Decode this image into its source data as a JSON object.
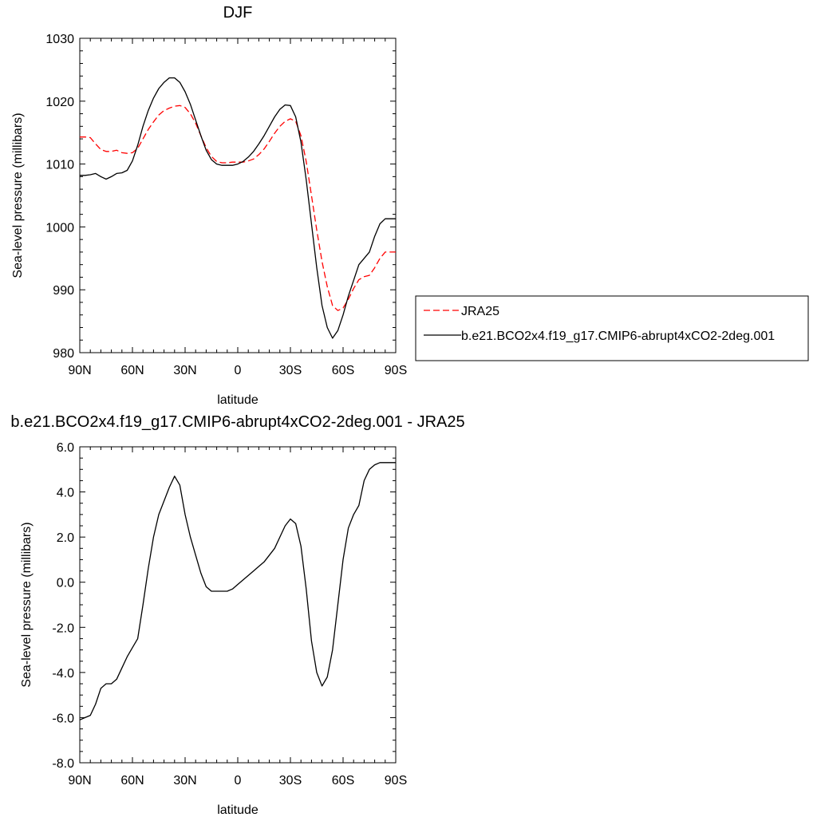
{
  "chart_data": [
    {
      "type": "line",
      "title": "DJF",
      "xlabel": "latitude",
      "ylabel": "Sea-level pressure (millibars)",
      "xlim": [
        90,
        -90
      ],
      "ylim": [
        980,
        1030
      ],
      "xticks": [
        {
          "value": 90,
          "label": "90N"
        },
        {
          "value": 60,
          "label": "60N"
        },
        {
          "value": 30,
          "label": "30N"
        },
        {
          "value": 0,
          "label": "0"
        },
        {
          "value": -30,
          "label": "30S"
        },
        {
          "value": -60,
          "label": "60S"
        },
        {
          "value": -90,
          "label": "90S"
        }
      ],
      "yticks": [
        {
          "value": 980,
          "label": "980"
        },
        {
          "value": 990,
          "label": "990"
        },
        {
          "value": 1000,
          "label": "1000"
        },
        {
          "value": 1010,
          "label": "1010"
        },
        {
          "value": 1020,
          "label": "1020"
        },
        {
          "value": 1030,
          "label": "1030"
        }
      ],
      "grid": false,
      "legend": "right",
      "series": [
        {
          "name": "JRA25",
          "color": "#ff0000",
          "dash": "dashed",
          "x": [
            90,
            87,
            84,
            81,
            78,
            75,
            72,
            69,
            66,
            63,
            60,
            57,
            54,
            51,
            48,
            45,
            42,
            39,
            36,
            33,
            30,
            27,
            24,
            21,
            18,
            15,
            12,
            9,
            6,
            3,
            0,
            -3,
            -6,
            -9,
            -12,
            -15,
            -18,
            -21,
            -24,
            -27,
            -30,
            -33,
            -36,
            -39,
            -42,
            -45,
            -48,
            -51,
            -54,
            -57,
            -60,
            -63,
            -66,
            -69,
            -72,
            -75,
            -78,
            -81,
            -84,
            -87,
            -90
          ],
          "y": [
            1014.3,
            1014.3,
            1014.2,
            1013.2,
            1012.3,
            1012.0,
            1012.0,
            1012.2,
            1011.8,
            1011.7,
            1011.8,
            1012.5,
            1014.0,
            1015.5,
            1016.7,
            1017.8,
            1018.5,
            1018.9,
            1019.2,
            1019.3,
            1019.0,
            1018.0,
            1016.5,
            1014.5,
            1012.6,
            1011.2,
            1010.4,
            1010.2,
            1010.2,
            1010.3,
            1010.3,
            1010.3,
            1010.5,
            1010.8,
            1011.5,
            1012.4,
            1013.6,
            1014.9,
            1016.0,
            1016.8,
            1017.2,
            1016.8,
            1014.5,
            1010.4,
            1005.0,
            999.5,
            994.5,
            990.5,
            987.5,
            986.7,
            987.1,
            988.5,
            990.2,
            991.6,
            992.1,
            992.3,
            993.5,
            995.0,
            996.0,
            996.0,
            996.0
          ]
        },
        {
          "name": "b.e21.BCO2x4.f19_g17.CMIP6-abrupt4xCO2-2deg.001",
          "color": "#000000",
          "dash": "solid",
          "x": [
            90,
            87,
            84,
            81,
            78,
            75,
            72,
            69,
            66,
            63,
            60,
            57,
            54,
            51,
            48,
            45,
            42,
            39,
            36,
            33,
            30,
            27,
            24,
            21,
            18,
            15,
            12,
            9,
            6,
            3,
            0,
            -3,
            -6,
            -9,
            -12,
            -15,
            -18,
            -21,
            -24,
            -27,
            -30,
            -33,
            -36,
            -39,
            -42,
            -45,
            -48,
            -51,
            -54,
            -57,
            -60,
            -63,
            -66,
            -69,
            -72,
            -75,
            -78,
            -81,
            -84,
            -87,
            -90
          ],
          "y": [
            1008.2,
            1008.2,
            1008.3,
            1008.5,
            1008.0,
            1007.6,
            1008.0,
            1008.5,
            1008.6,
            1009.0,
            1010.5,
            1013.0,
            1016.0,
            1018.5,
            1020.5,
            1022.0,
            1023.0,
            1023.7,
            1023.7,
            1023.0,
            1021.5,
            1019.5,
            1017.0,
            1014.5,
            1012.2,
            1010.7,
            1010.0,
            1009.8,
            1009.8,
            1009.8,
            1010.0,
            1010.4,
            1011.1,
            1012.0,
            1013.2,
            1014.5,
            1016.0,
            1017.5,
            1018.7,
            1019.4,
            1019.3,
            1017.5,
            1013.5,
            1007.5,
            1000.5,
            993.5,
            987.5,
            984.0,
            982.3,
            983.5,
            986.0,
            989.0,
            991.5,
            994.0,
            995.0,
            996.0,
            998.5,
            1000.5,
            1001.3,
            1001.3,
            1001.3
          ]
        }
      ]
    },
    {
      "type": "line",
      "title": "b.e21.BCO2x4.f19_g17.CMIP6-abrupt4xCO2-2deg.001 - JRA25",
      "xlabel": "latitude",
      "ylabel": "Sea-level pressure (millibars)",
      "xlim": [
        90,
        -90
      ],
      "ylim": [
        -8,
        6
      ],
      "xticks": [
        {
          "value": 90,
          "label": "90N"
        },
        {
          "value": 60,
          "label": "60N"
        },
        {
          "value": 30,
          "label": "30N"
        },
        {
          "value": 0,
          "label": "0"
        },
        {
          "value": -30,
          "label": "30S"
        },
        {
          "value": -60,
          "label": "60S"
        },
        {
          "value": -90,
          "label": "90S"
        }
      ],
      "yticks": [
        {
          "value": -8,
          "label": "-8.0"
        },
        {
          "value": -6,
          "label": "-6.0"
        },
        {
          "value": -4,
          "label": "-4.0"
        },
        {
          "value": -2,
          "label": "-2.0"
        },
        {
          "value": 0,
          "label": "0.0"
        },
        {
          "value": 2,
          "label": "2.0"
        },
        {
          "value": 4,
          "label": "4.0"
        },
        {
          "value": 6,
          "label": "6.0"
        }
      ],
      "grid": false,
      "series": [
        {
          "color": "#000000",
          "dash": "solid",
          "x": [
            90,
            87,
            84,
            81,
            78,
            75,
            72,
            69,
            66,
            63,
            60,
            57,
            54,
            51,
            48,
            45,
            42,
            39,
            36,
            33,
            30,
            27,
            24,
            21,
            18,
            15,
            12,
            9,
            6,
            3,
            0,
            -3,
            -6,
            -9,
            -12,
            -15,
            -18,
            -21,
            -24,
            -27,
            -30,
            -33,
            -36,
            -39,
            -42,
            -45,
            -48,
            -51,
            -54,
            -57,
            -60,
            -63,
            -66,
            -69,
            -72,
            -75,
            -78,
            -81,
            -84,
            -87,
            -90
          ],
          "y": [
            -6.1,
            -6.0,
            -5.9,
            -5.4,
            -4.7,
            -4.5,
            -4.5,
            -4.3,
            -3.8,
            -3.3,
            -2.9,
            -2.5,
            -1.0,
            0.6,
            2.0,
            3.0,
            3.6,
            4.2,
            4.7,
            4.3,
            3.0,
            2.0,
            1.2,
            0.4,
            -0.2,
            -0.4,
            -0.4,
            -0.4,
            -0.4,
            -0.3,
            -0.1,
            0.1,
            0.3,
            0.5,
            0.7,
            0.9,
            1.2,
            1.5,
            2.0,
            2.5,
            2.8,
            2.6,
            1.6,
            -0.3,
            -2.6,
            -4.0,
            -4.6,
            -4.2,
            -3.0,
            -1.0,
            1.0,
            2.4,
            3.0,
            3.4,
            4.5,
            5.0,
            5.2,
            5.3,
            5.3,
            5.3,
            5.3
          ]
        }
      ]
    }
  ]
}
